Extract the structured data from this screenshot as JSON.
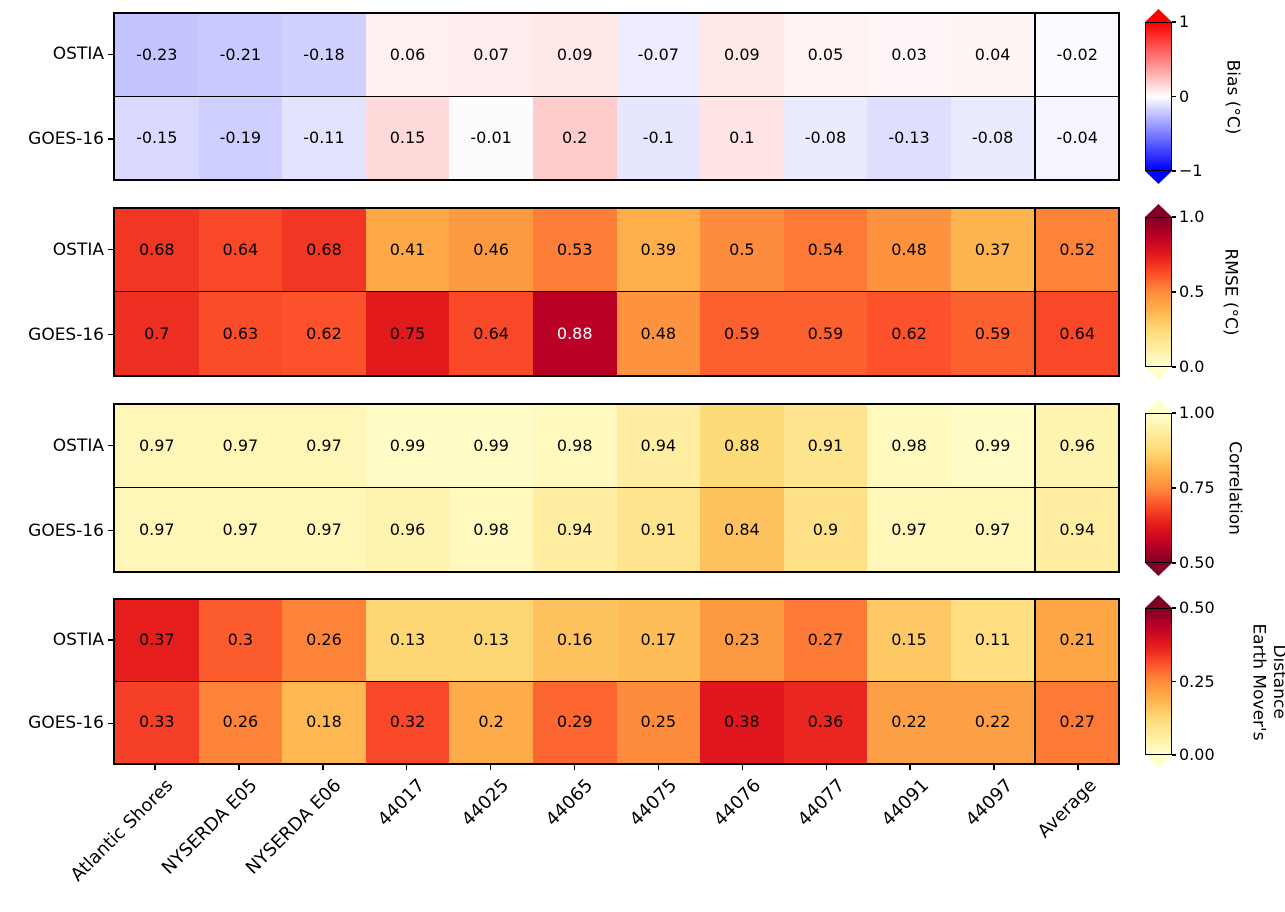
{
  "chart_data": {
    "type": "heatmap",
    "title": "",
    "columns": [
      "Atlantic Shores",
      "NYSERDA E05",
      "NYSERDA E06",
      "44017",
      "44025",
      "44065",
      "44075",
      "44076",
      "44077",
      "44091",
      "44097",
      "Average"
    ],
    "rows": [
      "OSTIA",
      "GOES-16"
    ],
    "layout": {
      "grid": "off",
      "legend": "none",
      "colorbar_position": "right",
      "x_tick_rotation": 45
    },
    "colors": {
      "cmap_bwr": [
        "#0000FF",
        "#FFFFFF",
        "#FF0000"
      ],
      "cmap_ylorrd": [
        "#FFFFCC",
        "#FFEDA0",
        "#FED976",
        "#FEB24C",
        "#FD8D3C",
        "#FC4E2A",
        "#E31A1C",
        "#BD0026",
        "#800026"
      ]
    },
    "panels": [
      {
        "id": "bias",
        "colorbar_label_lines": [
          "Bias (°C)"
        ],
        "cmap": "bwr",
        "vmin": -1,
        "vmax": 1,
        "colorbar_ticks": [
          "1",
          "0",
          "−1"
        ],
        "series": [
          {
            "name": "OSTIA",
            "values": [
              -0.23,
              -0.21,
              -0.18,
              0.06,
              0.07,
              0.09,
              -0.07,
              0.09,
              0.05,
              0.03,
              0.04,
              -0.02
            ]
          },
          {
            "name": "GOES-16",
            "values": [
              -0.15,
              -0.19,
              -0.11,
              0.15,
              -0.01,
              0.2,
              -0.1,
              0.1,
              -0.08,
              -0.13,
              -0.08,
              -0.04
            ]
          }
        ]
      },
      {
        "id": "rmse",
        "colorbar_label_lines": [
          "RMSE (°C)"
        ],
        "cmap": "ylorrd",
        "vmin": 0,
        "vmax": 1,
        "colorbar_ticks": [
          "1.0",
          "0.5",
          "0.0"
        ],
        "series": [
          {
            "name": "OSTIA",
            "values": [
              0.68,
              0.64,
              0.68,
              0.41,
              0.46,
              0.53,
              0.39,
              0.5,
              0.54,
              0.48,
              0.37,
              0.52
            ]
          },
          {
            "name": "GOES-16",
            "values": [
              0.7,
              0.63,
              0.62,
              0.75,
              0.64,
              0.88,
              0.48,
              0.59,
              0.59,
              0.62,
              0.59,
              0.64
            ]
          }
        ]
      },
      {
        "id": "correlation",
        "colorbar_label_lines": [
          "Correlation"
        ],
        "cmap": "ylorrd_r",
        "vmin": 0.5,
        "vmax": 1,
        "colorbar_ticks": [
          "1.00",
          "0.75",
          "0.50"
        ],
        "series": [
          {
            "name": "OSTIA",
            "values": [
              0.97,
              0.97,
              0.97,
              0.99,
              0.99,
              0.98,
              0.94,
              0.88,
              0.91,
              0.98,
              0.99,
              0.96
            ]
          },
          {
            "name": "GOES-16",
            "values": [
              0.97,
              0.97,
              0.97,
              0.96,
              0.98,
              0.94,
              0.91,
              0.84,
              0.9,
              0.97,
              0.97,
              0.94
            ]
          }
        ]
      },
      {
        "id": "emd",
        "colorbar_label_lines": [
          "Earth Mover's",
          "Distance"
        ],
        "cmap": "ylorrd",
        "vmin": 0,
        "vmax": 0.5,
        "colorbar_ticks": [
          "0.50",
          "0.25",
          "0.00"
        ],
        "series": [
          {
            "name": "OSTIA",
            "values": [
              0.37,
              0.3,
              0.26,
              0.13,
              0.13,
              0.16,
              0.17,
              0.23,
              0.27,
              0.15,
              0.11,
              0.21
            ]
          },
          {
            "name": "GOES-16",
            "values": [
              0.33,
              0.26,
              0.18,
              0.32,
              0.2,
              0.29,
              0.25,
              0.38,
              0.36,
              0.22,
              0.22,
              0.27
            ]
          }
        ]
      }
    ]
  }
}
